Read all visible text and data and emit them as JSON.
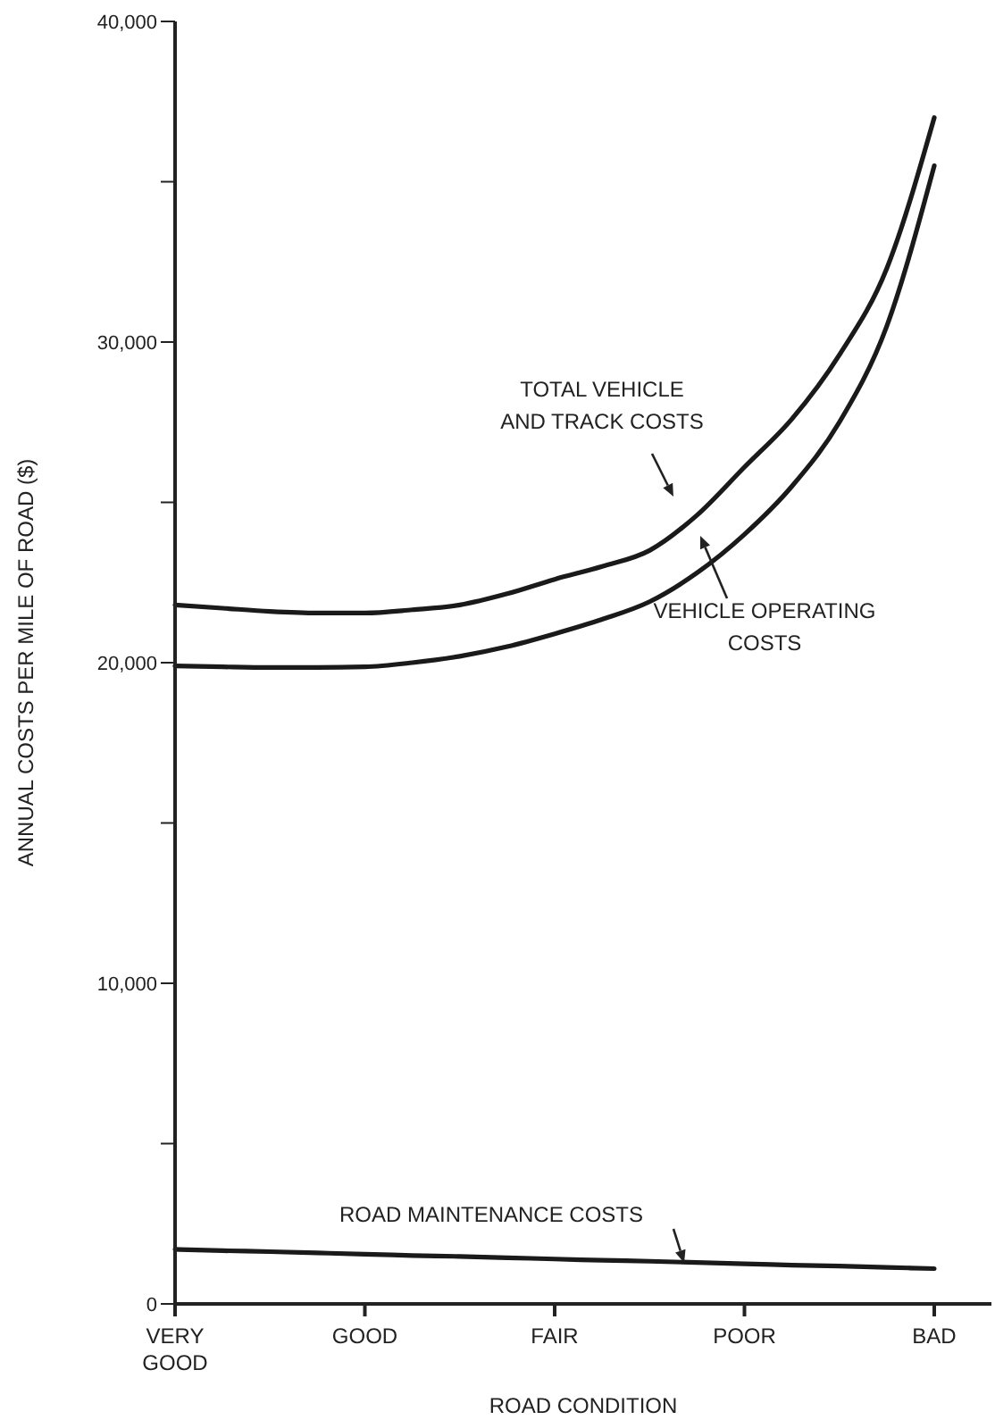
{
  "chart_data": {
    "type": "line",
    "xlabel": "ROAD CONDITION",
    "ylabel": "ANNUAL COSTS PER MILE OF ROAD ($)",
    "categories": [
      "VERY\nGOOD",
      null,
      null,
      null,
      "GOOD",
      null,
      null,
      null,
      "FAIR",
      null,
      null,
      null,
      "POOR",
      null,
      null,
      null,
      "BAD"
    ],
    "ylim": [
      0,
      40000
    ],
    "yticks": [
      {
        "value": 0,
        "label": "0"
      },
      {
        "value": 5000,
        "label": null
      },
      {
        "value": 10000,
        "label": "10,000"
      },
      {
        "value": 15000,
        "label": null
      },
      {
        "value": 20000,
        "label": "20,000"
      },
      {
        "value": 25000,
        "label": null
      },
      {
        "value": 30000,
        "label": "30,000"
      },
      {
        "value": 35000,
        "label": null
      },
      {
        "value": 40000,
        "label": "40,000"
      }
    ],
    "marker": "none",
    "line_style": "solid",
    "series": [
      {
        "color": "#1a1a1a",
        "values": [
          21800,
          21700,
          21600,
          21550,
          21550,
          21650,
          21800,
          22150,
          22600,
          23000,
          23500,
          24600,
          26100,
          27600,
          29600,
          32300,
          37000
        ]
      },
      {
        "color": "#1a1a1a",
        "values": [
          19900,
          19870,
          19850,
          19850,
          19870,
          20000,
          20200,
          20500,
          20900,
          21350,
          21900,
          22800,
          24000,
          25500,
          27500,
          30500,
          35500
        ]
      },
      {
        "color": "#1a1a1a",
        "values": [
          1700,
          1660,
          1630,
          1590,
          1550,
          1510,
          1480,
          1440,
          1400,
          1360,
          1330,
          1290,
          1250,
          1210,
          1180,
          1140,
          1100
        ]
      }
    ],
    "annotations": [
      "TOTAL VEHICLE\nAND TRACK COSTS",
      "VEHICLE OPERATING\nCOSTS",
      "ROAD MAINTENANCE COSTS"
    ]
  }
}
